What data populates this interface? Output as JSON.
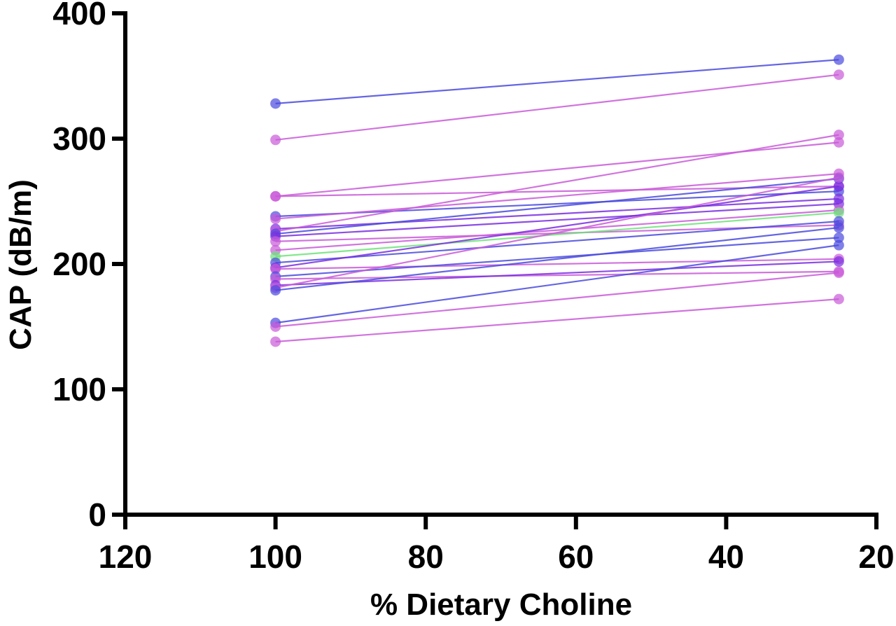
{
  "chart_data": {
    "type": "line",
    "title": "",
    "xlabel": "% Dietary Choline",
    "ylabel": "CAP (dB/m)",
    "xlim": [
      120,
      20
    ],
    "ylim": [
      0,
      400
    ],
    "x_ticks": [
      "120",
      "100",
      "80",
      "60",
      "40",
      "20"
    ],
    "y_ticks": [
      "0",
      "100",
      "200",
      "300",
      "400"
    ],
    "grid": false,
    "legend": "none",
    "x": [
      100,
      25
    ],
    "colors": {
      "blue": "#4a4ade",
      "purple": "#c95ad8",
      "violet": "#7a2ee0",
      "green": "#6ee37a"
    },
    "series": [
      {
        "color": "blue",
        "values": [
          328,
          363
        ]
      },
      {
        "color": "purple",
        "values": [
          299,
          351
        ]
      },
      {
        "color": "purple",
        "values": [
          254,
          297
        ]
      },
      {
        "color": "purple",
        "values": [
          254,
          262
        ]
      },
      {
        "color": "blue",
        "values": [
          238,
          258
        ]
      },
      {
        "color": "purple",
        "values": [
          236,
          272
        ]
      },
      {
        "color": "violet",
        "values": [
          228,
          252
        ]
      },
      {
        "color": "purple",
        "values": [
          226,
          303
        ]
      },
      {
        "color": "blue",
        "values": [
          224,
          268
        ]
      },
      {
        "color": "violet",
        "values": [
          222,
          248
        ]
      },
      {
        "color": "purple",
        "values": [
          218,
          231
        ]
      },
      {
        "color": "purple",
        "values": [
          211,
          243
        ]
      },
      {
        "color": "green",
        "values": [
          206,
          241
        ]
      },
      {
        "color": "blue",
        "values": [
          201,
          234
        ]
      },
      {
        "color": "violet",
        "values": [
          197,
          262
        ]
      },
      {
        "color": "purple",
        "values": [
          196,
          204
        ]
      },
      {
        "color": "blue",
        "values": [
          190,
          221
        ]
      },
      {
        "color": "purple",
        "values": [
          188,
          194
        ]
      },
      {
        "color": "violet",
        "values": [
          183,
          202
        ]
      },
      {
        "color": "purple",
        "values": [
          181,
          269
        ]
      },
      {
        "color": "blue",
        "values": [
          179,
          229
        ]
      },
      {
        "color": "blue",
        "values": [
          153,
          215
        ]
      },
      {
        "color": "purple",
        "values": [
          150,
          193
        ]
      },
      {
        "color": "purple",
        "values": [
          138,
          172
        ]
      }
    ]
  }
}
